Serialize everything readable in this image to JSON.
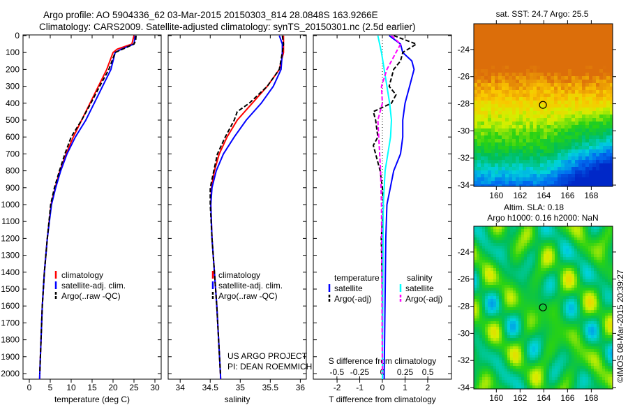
{
  "title": {
    "line1": "Argo profile: AO 5904336_62 03-Mar-2015 20150303_814 28.0848S 163.9266E",
    "line2": "Climatology: CARS2009. Satellite-adjusted climatology: synTS_20150301.nc (2.5d earlier)"
  },
  "credit": "©IMOS 08-Mar-2015 20:39:27",
  "project": {
    "line1": "US ARGO PROJECT",
    "line2": "PI: DEAN ROEMMICH"
  },
  "chart_data": [
    {
      "type": "line",
      "id": "temperature",
      "xlabel": "temperature (deg C)",
      "xlim": [
        -1.5,
        31.5
      ],
      "xticks": [
        0,
        5,
        10,
        15,
        20,
        25,
        30
      ],
      "ylim": [
        0,
        2130
      ],
      "yticks": [
        0,
        100,
        200,
        300,
        400,
        500,
        600,
        700,
        800,
        900,
        1000,
        1100,
        1200,
        1300,
        1400,
        1500,
        1600,
        1700,
        1800,
        1900,
        2000
      ],
      "legend": [
        "climatology",
        "satellite-adj. clim.",
        "Argo(..raw -QC)"
      ],
      "legend_position": "lower-center",
      "series": [
        {
          "name": "climatology",
          "color": "#ff0000",
          "depth": [
            0,
            50,
            80,
            100,
            200,
            300,
            400,
            500,
            600,
            700,
            800,
            900,
            1000,
            1200,
            1400,
            1600,
            1800,
            2000,
            2100
          ],
          "value": [
            25,
            24.5,
            21,
            20,
            18.5,
            16.5,
            14.5,
            12.5,
            10.5,
            8.8,
            7.3,
            6.2,
            5.2,
            4.3,
            3.6,
            3.1,
            2.8,
            2.5,
            2.4
          ]
        },
        {
          "name": "satellite-adj. clim.",
          "color": "#0000ff",
          "depth": [
            0,
            50,
            80,
            100,
            200,
            300,
            400,
            500,
            600,
            700,
            800,
            900,
            1000,
            1200,
            1400,
            1600,
            1800,
            2000,
            2100
          ],
          "value": [
            25.3,
            25,
            22,
            20.5,
            19.5,
            17.5,
            15.5,
            13.5,
            11,
            9,
            7.5,
            6.3,
            5.3,
            4.3,
            3.6,
            3.1,
            2.8,
            2.5,
            2.4
          ]
        },
        {
          "name": "Argo(..raw -QC)",
          "color": "#000000",
          "dash": true,
          "depth": [
            0,
            30,
            50,
            100,
            200,
            300,
            400,
            500,
            600,
            700,
            800,
            900,
            1000,
            1200,
            1400,
            1600,
            1800,
            2000
          ],
          "value": [
            25.5,
            25.4,
            25,
            20.5,
            19,
            16.8,
            14.7,
            12.5,
            10,
            8.5,
            7.2,
            6,
            5.1,
            4.3,
            3.6,
            3.1,
            2.8,
            2.5
          ]
        }
      ]
    },
    {
      "type": "line",
      "id": "salinity",
      "xlabel": "salinity",
      "xlim": [
        33.8,
        36.1
      ],
      "xticks": [
        34,
        34.5,
        35,
        35.5,
        36
      ],
      "ylim": [
        0,
        2130
      ],
      "legend": [
        "climatology",
        "satellite-adj. clim.",
        "Argo(..raw -QC)"
      ],
      "series": [
        {
          "name": "climatology",
          "color": "#ff0000",
          "depth": [
            0,
            100,
            200,
            300,
            400,
            500,
            600,
            700,
            800,
            900,
            1000,
            1200,
            1400,
            1600,
            1800,
            2000,
            2100
          ],
          "value": [
            35.72,
            35.72,
            35.65,
            35.45,
            35.2,
            34.95,
            34.78,
            34.65,
            34.57,
            34.52,
            34.51,
            34.53,
            34.57,
            34.61,
            34.64,
            34.67,
            34.68
          ]
        },
        {
          "name": "satellite-adj. clim.",
          "color": "#0000ff",
          "depth": [
            0,
            50,
            100,
            200,
            300,
            400,
            500,
            600,
            700,
            800,
            900,
            1000,
            1200,
            1400,
            1600,
            1800,
            2000,
            2100
          ],
          "value": [
            35.65,
            35.7,
            35.7,
            35.68,
            35.55,
            35.35,
            35.1,
            34.9,
            34.72,
            34.6,
            34.53,
            34.51,
            34.53,
            34.57,
            34.61,
            34.64,
            34.67,
            34.68
          ]
        },
        {
          "name": "Argo(..raw -QC)",
          "color": "#000000",
          "dash": true,
          "depth": [
            0,
            50,
            100,
            200,
            300,
            400,
            450,
            500,
            600,
            700,
            800,
            900,
            1000,
            1200,
            1400,
            1600,
            1800,
            2000
          ],
          "value": [
            35.7,
            35.72,
            35.7,
            35.65,
            35.45,
            35.15,
            34.95,
            34.9,
            34.75,
            34.62,
            34.56,
            34.5,
            34.5,
            34.53,
            34.57,
            34.61,
            34.64,
            34.67
          ]
        }
      ]
    },
    {
      "type": "line",
      "id": "difference",
      "xlabel": "T difference from climatology",
      "xlabel2": "S difference from climatology",
      "xlim": [
        -3.05,
        3.05
      ],
      "xticks": [
        -2,
        -1,
        0,
        1,
        2
      ],
      "x2lim": [
        -0.76,
        0.76
      ],
      "x2ticks": [
        -0.5,
        -0.25,
        0,
        0.25,
        0.5
      ],
      "x2ticklabels": [
        "-0.5",
        "-0.25",
        "0",
        "0.25",
        "0.5"
      ],
      "ylim": [
        0,
        2130
      ],
      "legend": {
        "temperature_header": "temperature",
        "salinity_header": "salinity",
        "t_sat": "satellite",
        "t_argo": "Argo(-adj)",
        "s_sat": "satellite",
        "s_argo": "Argo(-adj)"
      },
      "series": [
        {
          "name": "temperature satellite",
          "axis": "T",
          "color": "#0000ff",
          "depth": [
            0,
            50,
            100,
            150,
            200,
            300,
            400,
            500,
            600,
            700,
            800,
            900,
            1000,
            1200,
            2000,
            2100
          ],
          "value": [
            0.3,
            0.8,
            0.9,
            1.3,
            1.4,
            1.2,
            1.0,
            0.9,
            0.9,
            0.8,
            0.5,
            0.35,
            0.2,
            0.15,
            0.08,
            0.08
          ]
        },
        {
          "name": "temperature Argo(-adj)",
          "axis": "T",
          "color": "#000000",
          "dash": true,
          "depth": [
            0,
            30,
            50,
            100,
            150,
            200,
            300,
            350,
            400,
            450,
            500,
            600,
            650,
            700,
            800,
            900,
            1000,
            1200,
            1500,
            2000
          ],
          "value": [
            0.5,
            1.1,
            1.5,
            0.9,
            0.8,
            0.5,
            0.3,
            0.6,
            0.4,
            -0.4,
            -0.3,
            -0.2,
            -0.4,
            -0.3,
            -0.1,
            0,
            0.05,
            -0.05,
            0,
            0
          ]
        },
        {
          "name": "salinity satellite",
          "axis": "S",
          "color": "#00ffff",
          "depth": [
            0,
            50,
            100,
            200,
            300,
            400,
            500,
            600,
            700,
            800,
            1000,
            2000,
            2100
          ],
          "value": [
            -0.05,
            -0.03,
            -0.01,
            0.02,
            0.05,
            0.08,
            0.1,
            0.09,
            0.06,
            0.03,
            0.01,
            0,
            0
          ]
        },
        {
          "name": "salinity Argo(-adj)",
          "axis": "S",
          "color": "#ff00ff",
          "dash": true,
          "depth": [
            0,
            50,
            100,
            200,
            300,
            400,
            500,
            600,
            700,
            800,
            1000,
            2000
          ],
          "value": [
            0.1,
            0.2,
            0.15,
            0.05,
            -0.01,
            0,
            -0.05,
            -0.04,
            -0.03,
            -0.02,
            -0.01,
            0
          ]
        }
      ]
    },
    {
      "type": "heatmap",
      "id": "sst-map",
      "title": "sat. SST: 24.7 Argo: 25.5",
      "xlim": [
        158.1,
        169.8
      ],
      "ylim": [
        -34.1,
        -22.1
      ],
      "xticks": [
        160,
        162,
        164,
        166,
        168
      ],
      "yticks": [
        -24,
        -26,
        -28,
        -30,
        -32,
        -34
      ],
      "marker": {
        "lon": 163.9266,
        "lat": -28.0848
      }
    },
    {
      "type": "heatmap",
      "id": "sla-map",
      "title": "Altim. SLA: 0.18",
      "subtitle": "Argo h1000: 0.16 h2000: NaN",
      "xlim": [
        158.1,
        169.8
      ],
      "ylim": [
        -34.1,
        -22.1
      ],
      "xticks": [
        160,
        162,
        164,
        166,
        168
      ],
      "yticks": [
        -24,
        -26,
        -28,
        -30,
        -32,
        -34
      ],
      "marker": {
        "lon": 163.9266,
        "lat": -28.0848
      }
    }
  ]
}
